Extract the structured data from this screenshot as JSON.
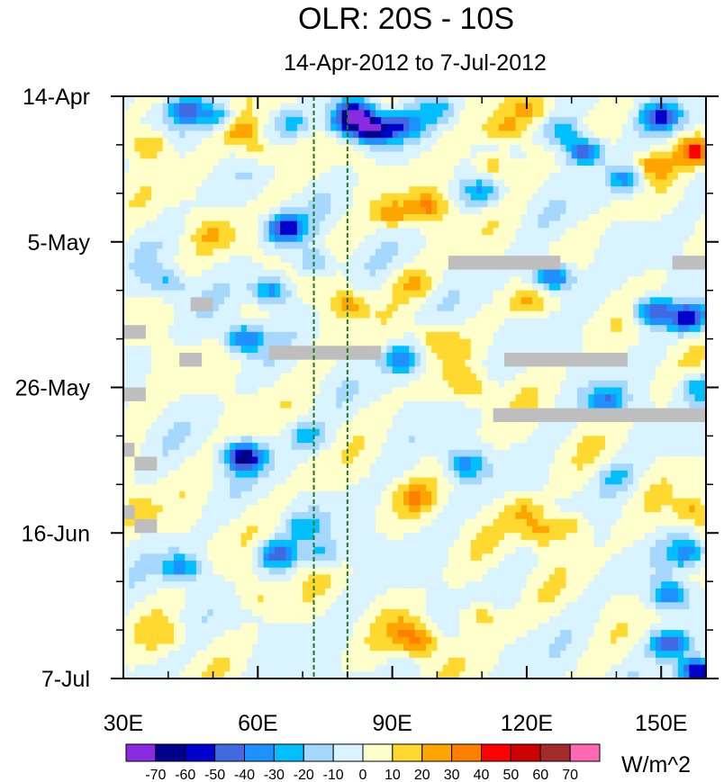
{
  "chart_data": {
    "type": "heatmap",
    "title": "OLR: 20S - 10S",
    "subtitle": "14-Apr-2012 to 7-Jul-2012",
    "xlabel": "",
    "ylabel": "",
    "x_range": [
      30,
      160
    ],
    "x_ticks": [
      {
        "value": 30,
        "label": "30E"
      },
      {
        "value": 60,
        "label": "60E"
      },
      {
        "value": 90,
        "label": "90E"
      },
      {
        "value": 120,
        "label": "120E"
      },
      {
        "value": 150,
        "label": "150E"
      }
    ],
    "y_range_days": [
      0,
      84
    ],
    "y_ticks": [
      {
        "day": 0,
        "label": "14-Apr"
      },
      {
        "day": 21,
        "label": "5-May"
      },
      {
        "day": 42,
        "label": "26-May"
      },
      {
        "day": 63,
        "label": "16-Jun"
      },
      {
        "day": 84,
        "label": "7-Jul"
      }
    ],
    "reference_lines_lon": [
      72.5,
      80
    ],
    "colorbar": {
      "units": "W/m^2",
      "labels": [
        "-70",
        "-60",
        "-50",
        "-40",
        "-30",
        "-20",
        "-10",
        "0",
        "10",
        "20",
        "30",
        "40",
        "50",
        "60",
        "70"
      ],
      "colors": [
        "#8a2be2",
        "#00008b",
        "#0000cd",
        "#4169e1",
        "#1e90ff",
        "#00bfff",
        "#a6d8ff",
        "#d9f4ff",
        "#ffffcc",
        "#ffd92f",
        "#ffa500",
        "#ff7f00",
        "#ff0000",
        "#cc0000",
        "#a52a2a",
        "#ff69b4"
      ]
    },
    "missing_regions": [
      {
        "lon": [
          102.5,
          127.5
        ],
        "day": [
          23,
          25
        ]
      },
      {
        "lon": [
          152.5,
          160
        ],
        "day": [
          23,
          25
        ]
      },
      {
        "lon": [
          45,
          50
        ],
        "day": [
          29,
          31
        ]
      },
      {
        "lon": [
          30,
          35
        ],
        "day": [
          33,
          35
        ]
      },
      {
        "lon": [
          62.5,
          87.5
        ],
        "day": [
          36,
          38
        ]
      },
      {
        "lon": [
          42.5,
          47.5
        ],
        "day": [
          37,
          39
        ]
      },
      {
        "lon": [
          115,
          142.5
        ],
        "day": [
          37,
          39
        ]
      },
      {
        "lon": [
          30,
          35
        ],
        "day": [
          42,
          44
        ]
      },
      {
        "lon": [
          112.5,
          160
        ],
        "day": [
          45,
          47
        ]
      },
      {
        "lon": [
          30,
          32.5
        ],
        "day": [
          50,
          52
        ]
      },
      {
        "lon": [
          32.5,
          37.5
        ],
        "day": [
          52,
          54
        ]
      },
      {
        "lon": [
          30,
          32.5
        ],
        "day": [
          59,
          61
        ]
      },
      {
        "lon": [
          32.5,
          37.5
        ],
        "day": [
          61,
          63
        ]
      }
    ],
    "anomaly_features": [
      {
        "lon": 44,
        "day": 2,
        "value": -35
      },
      {
        "lon": 51,
        "day": 3,
        "value": -30
      },
      {
        "lon": 82,
        "day": 2.5,
        "value": -55
      },
      {
        "lon": 86,
        "day": 5,
        "value": -65
      },
      {
        "lon": 80,
        "day": 4,
        "value": -40
      },
      {
        "lon": 68,
        "day": 4,
        "value": -25
      },
      {
        "lon": 92,
        "day": 4,
        "value": -35
      },
      {
        "lon": 100,
        "day": 2,
        "value": -20
      },
      {
        "lon": 133,
        "day": 8,
        "value": -55
      },
      {
        "lon": 150,
        "day": 3,
        "value": -45
      },
      {
        "lon": 142,
        "day": 12,
        "value": -35
      },
      {
        "lon": 128,
        "day": 5,
        "value": -30
      },
      {
        "lon": 110,
        "day": 14,
        "value": -25
      },
      {
        "lon": 66,
        "day": 19,
        "value": -60
      },
      {
        "lon": 63,
        "day": 28,
        "value": -40
      },
      {
        "lon": 73,
        "day": 24,
        "value": -25
      },
      {
        "lon": 57,
        "day": 35,
        "value": -45
      },
      {
        "lon": 40,
        "day": 27,
        "value": -25
      },
      {
        "lon": 92,
        "day": 38,
        "value": -40
      },
      {
        "lon": 126,
        "day": 26,
        "value": -55
      },
      {
        "lon": 148,
        "day": 31,
        "value": -50
      },
      {
        "lon": 156,
        "day": 32,
        "value": -55
      },
      {
        "lon": 138,
        "day": 44,
        "value": -40
      },
      {
        "lon": 158,
        "day": 42,
        "value": -30
      },
      {
        "lon": 57,
        "day": 52,
        "value": -65
      },
      {
        "lon": 71,
        "day": 49,
        "value": -25
      },
      {
        "lon": 106,
        "day": 53,
        "value": -35
      },
      {
        "lon": 140,
        "day": 55,
        "value": -20
      },
      {
        "lon": 64,
        "day": 66,
        "value": -45
      },
      {
        "lon": 43,
        "day": 68,
        "value": -35
      },
      {
        "lon": 75,
        "day": 66,
        "value": -25
      },
      {
        "lon": 70,
        "day": 62,
        "value": -20
      },
      {
        "lon": 156,
        "day": 66,
        "value": -35
      },
      {
        "lon": 152,
        "day": 72,
        "value": -40
      },
      {
        "lon": 152,
        "day": 79,
        "value": -50
      },
      {
        "lon": 158,
        "day": 83,
        "value": -70
      },
      {
        "lon": 36,
        "day": 7,
        "value": 25
      },
      {
        "lon": 56,
        "day": 5,
        "value": 25
      },
      {
        "lon": 60,
        "day": 8,
        "value": 20
      },
      {
        "lon": 98,
        "day": 16,
        "value": 30
      },
      {
        "lon": 90,
        "day": 17,
        "value": 25
      },
      {
        "lon": 112,
        "day": 10,
        "value": 25
      },
      {
        "lon": 120,
        "day": 2,
        "value": 20
      },
      {
        "lon": 115,
        "day": 5,
        "value": 25
      },
      {
        "lon": 158,
        "day": 8,
        "value": 45
      },
      {
        "lon": 148,
        "day": 10,
        "value": 25
      },
      {
        "lon": 80,
        "day": 30,
        "value": 25
      },
      {
        "lon": 95,
        "day": 27,
        "value": 20
      },
      {
        "lon": 100,
        "day": 35,
        "value": 20
      },
      {
        "lon": 50,
        "day": 20,
        "value": 15
      },
      {
        "lon": 120,
        "day": 30,
        "value": 20
      },
      {
        "lon": 108,
        "day": 42,
        "value": 20
      },
      {
        "lon": 120,
        "day": 60,
        "value": 20
      },
      {
        "lon": 123,
        "day": 63,
        "value": 25
      },
      {
        "lon": 130,
        "day": 62,
        "value": 20
      },
      {
        "lon": 95,
        "day": 58,
        "value": 20
      },
      {
        "lon": 60,
        "day": 72,
        "value": 15
      },
      {
        "lon": 93,
        "day": 77,
        "value": 20
      },
      {
        "lon": 96,
        "day": 79,
        "value": 30
      },
      {
        "lon": 110,
        "day": 75,
        "value": 20
      },
      {
        "lon": 157,
        "day": 60,
        "value": 25
      },
      {
        "lon": 33,
        "day": 60,
        "value": 15
      },
      {
        "lon": 40,
        "day": 78,
        "value": 15
      }
    ]
  }
}
